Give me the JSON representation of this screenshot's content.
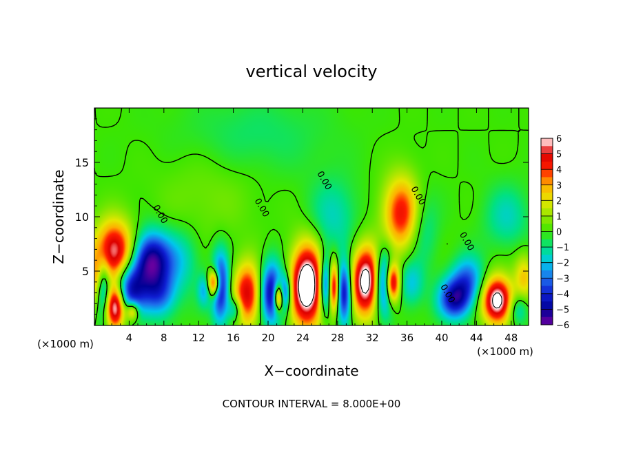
{
  "chart_data": {
    "type": "heatmap",
    "title": "vertical velocity",
    "xlabel": "X−coordinate",
    "ylabel": "Z−coordinate",
    "x_unit_label": "(×1000 m)",
    "x_unit_label_right": "(×1000 m)",
    "xlim": [
      0,
      50
    ],
    "ylim": [
      0,
      20
    ],
    "x_ticks": [
      4,
      8,
      12,
      16,
      20,
      24,
      28,
      32,
      36,
      40,
      44,
      48
    ],
    "y_ticks": [
      5,
      10,
      15
    ],
    "colorbar": {
      "min": -6,
      "max": 6,
      "tick_values": [
        6,
        5,
        4,
        3,
        2,
        1,
        0,
        -1,
        -2,
        -3,
        -4,
        -5,
        -6
      ],
      "tick_labels": [
        "6",
        "5",
        "4",
        "3",
        "2",
        "1",
        "0",
        "−1",
        "−2",
        "−3",
        "−4",
        "−5",
        "−6"
      ]
    },
    "contour_labels": [
      {
        "x": 7.3,
        "z": 10.1,
        "text": "0.00"
      },
      {
        "x": 19.0,
        "z": 10.7,
        "text": "0.00"
      },
      {
        "x": 26.2,
        "z": 13.2,
        "text": "0.00"
      },
      {
        "x": 37.0,
        "z": 11.8,
        "text": "0.00"
      },
      {
        "x": 42.6,
        "z": 7.6,
        "text": "0.00"
      },
      {
        "x": 40.4,
        "z": 2.8,
        "text": "0.00"
      }
    ],
    "features": [
      {
        "x": 2.3,
        "z": 6.7,
        "w": 6.0,
        "sx": 1.6,
        "sz": 2.0
      },
      {
        "x": 2.4,
        "z": 1.7,
        "w": 6.5,
        "sx": 0.8,
        "sz": 1.4
      },
      {
        "x": 4.4,
        "z": 1.3,
        "w": 3.5,
        "sx": 0.5,
        "sz": 0.6
      },
      {
        "x": 0.3,
        "z": 4.0,
        "w": 3.0,
        "sx": 0.8,
        "sz": 1.8
      },
      {
        "x": 1.0,
        "z": 3.5,
        "w": -4.5,
        "sx": 0.6,
        "sz": 2.0
      },
      {
        "x": 6.5,
        "z": 6.0,
        "w": -5.5,
        "sx": 1.6,
        "sz": 1.8
      },
      {
        "x": 4.0,
        "z": 3.4,
        "w": -4.5,
        "sx": 1.3,
        "sz": 1.6
      },
      {
        "x": 7.5,
        "z": 2.8,
        "w": -3.0,
        "sx": 1.4,
        "sz": 1.5
      },
      {
        "x": 10.0,
        "z": 6.0,
        "w": -1.5,
        "sx": 1.5,
        "sz": 2.0
      },
      {
        "x": 13.8,
        "z": 3.9,
        "w": 6.0,
        "sx": 0.5,
        "sz": 0.9
      },
      {
        "x": 14.5,
        "z": 3.5,
        "w": -5.0,
        "sx": 0.7,
        "sz": 2.2
      },
      {
        "x": 12.6,
        "z": 3.2,
        "w": -2.0,
        "sx": 0.5,
        "sz": 1.0
      },
      {
        "x": 17.6,
        "z": 2.9,
        "w": 5.0,
        "sx": 1.1,
        "sz": 2.0
      },
      {
        "x": 16.2,
        "z": 1.5,
        "w": -2.5,
        "sx": 0.6,
        "sz": 0.8
      },
      {
        "x": 20.4,
        "z": 3.0,
        "w": -5.0,
        "sx": 0.9,
        "sz": 2.0
      },
      {
        "x": 21.2,
        "z": 2.6,
        "w": 6.0,
        "sx": 0.4,
        "sz": 0.9
      },
      {
        "x": 22.0,
        "z": 3.0,
        "w": -3.5,
        "sx": 0.5,
        "sz": 1.2
      },
      {
        "x": 24.5,
        "z": 3.7,
        "w": 8.0,
        "sx": 1.3,
        "sz": 2.6
      },
      {
        "x": 27.6,
        "z": 3.5,
        "w": 5.0,
        "sx": 0.4,
        "sz": 1.6
      },
      {
        "x": 26.6,
        "z": 3.8,
        "w": -4.5,
        "sx": 0.5,
        "sz": 1.8
      },
      {
        "x": 28.8,
        "z": 3.0,
        "w": -5.0,
        "sx": 0.6,
        "sz": 2.0
      },
      {
        "x": 31.3,
        "z": 4.1,
        "w": 7.0,
        "sx": 1.2,
        "sz": 2.2
      },
      {
        "x": 34.3,
        "z": 3.9,
        "w": 7.0,
        "sx": 0.6,
        "sz": 1.3
      },
      {
        "x": 33.4,
        "z": 4.0,
        "w": -5.5,
        "sx": 0.8,
        "sz": 2.0
      },
      {
        "x": 35.4,
        "z": 10.3,
        "w": 4.5,
        "sx": 1.5,
        "sz": 2.4
      },
      {
        "x": 36.5,
        "z": 3.8,
        "w": -2.0,
        "sx": 1.0,
        "sz": 1.5
      },
      {
        "x": 37.8,
        "z": 9.0,
        "w": -1.5,
        "sx": 1.2,
        "sz": 2.4
      },
      {
        "x": 41.5,
        "z": 2.4,
        "w": -4.5,
        "sx": 1.3,
        "sz": 1.3
      },
      {
        "x": 43.0,
        "z": 4.2,
        "w": -3.0,
        "sx": 1.3,
        "sz": 1.5
      },
      {
        "x": 46.4,
        "z": 2.3,
        "w": 7.0,
        "sx": 1.2,
        "sz": 1.5
      },
      {
        "x": 48.8,
        "z": 1.5,
        "w": -2.0,
        "sx": 0.8,
        "sz": 1.0
      },
      {
        "x": 49.5,
        "z": 4.5,
        "w": 2.5,
        "sx": 0.8,
        "sz": 1.5
      },
      {
        "x": 47.5,
        "z": 10.0,
        "w": -1.5,
        "sx": 1.8,
        "sz": 2.0
      },
      {
        "x": 27.5,
        "z": 10.0,
        "w": -1.5,
        "sx": 2.0,
        "sz": 2.5
      },
      {
        "x": 18.5,
        "z": 17.5,
        "w": -0.8,
        "sx": 6.0,
        "sz": 2.5
      },
      {
        "x": 13.0,
        "z": 12.0,
        "w": 0.6,
        "sx": 4.0,
        "sz": 3.0
      }
    ]
  },
  "footer": {
    "contour_interval": "CONTOUR INTERVAL = 8.000E+00"
  }
}
